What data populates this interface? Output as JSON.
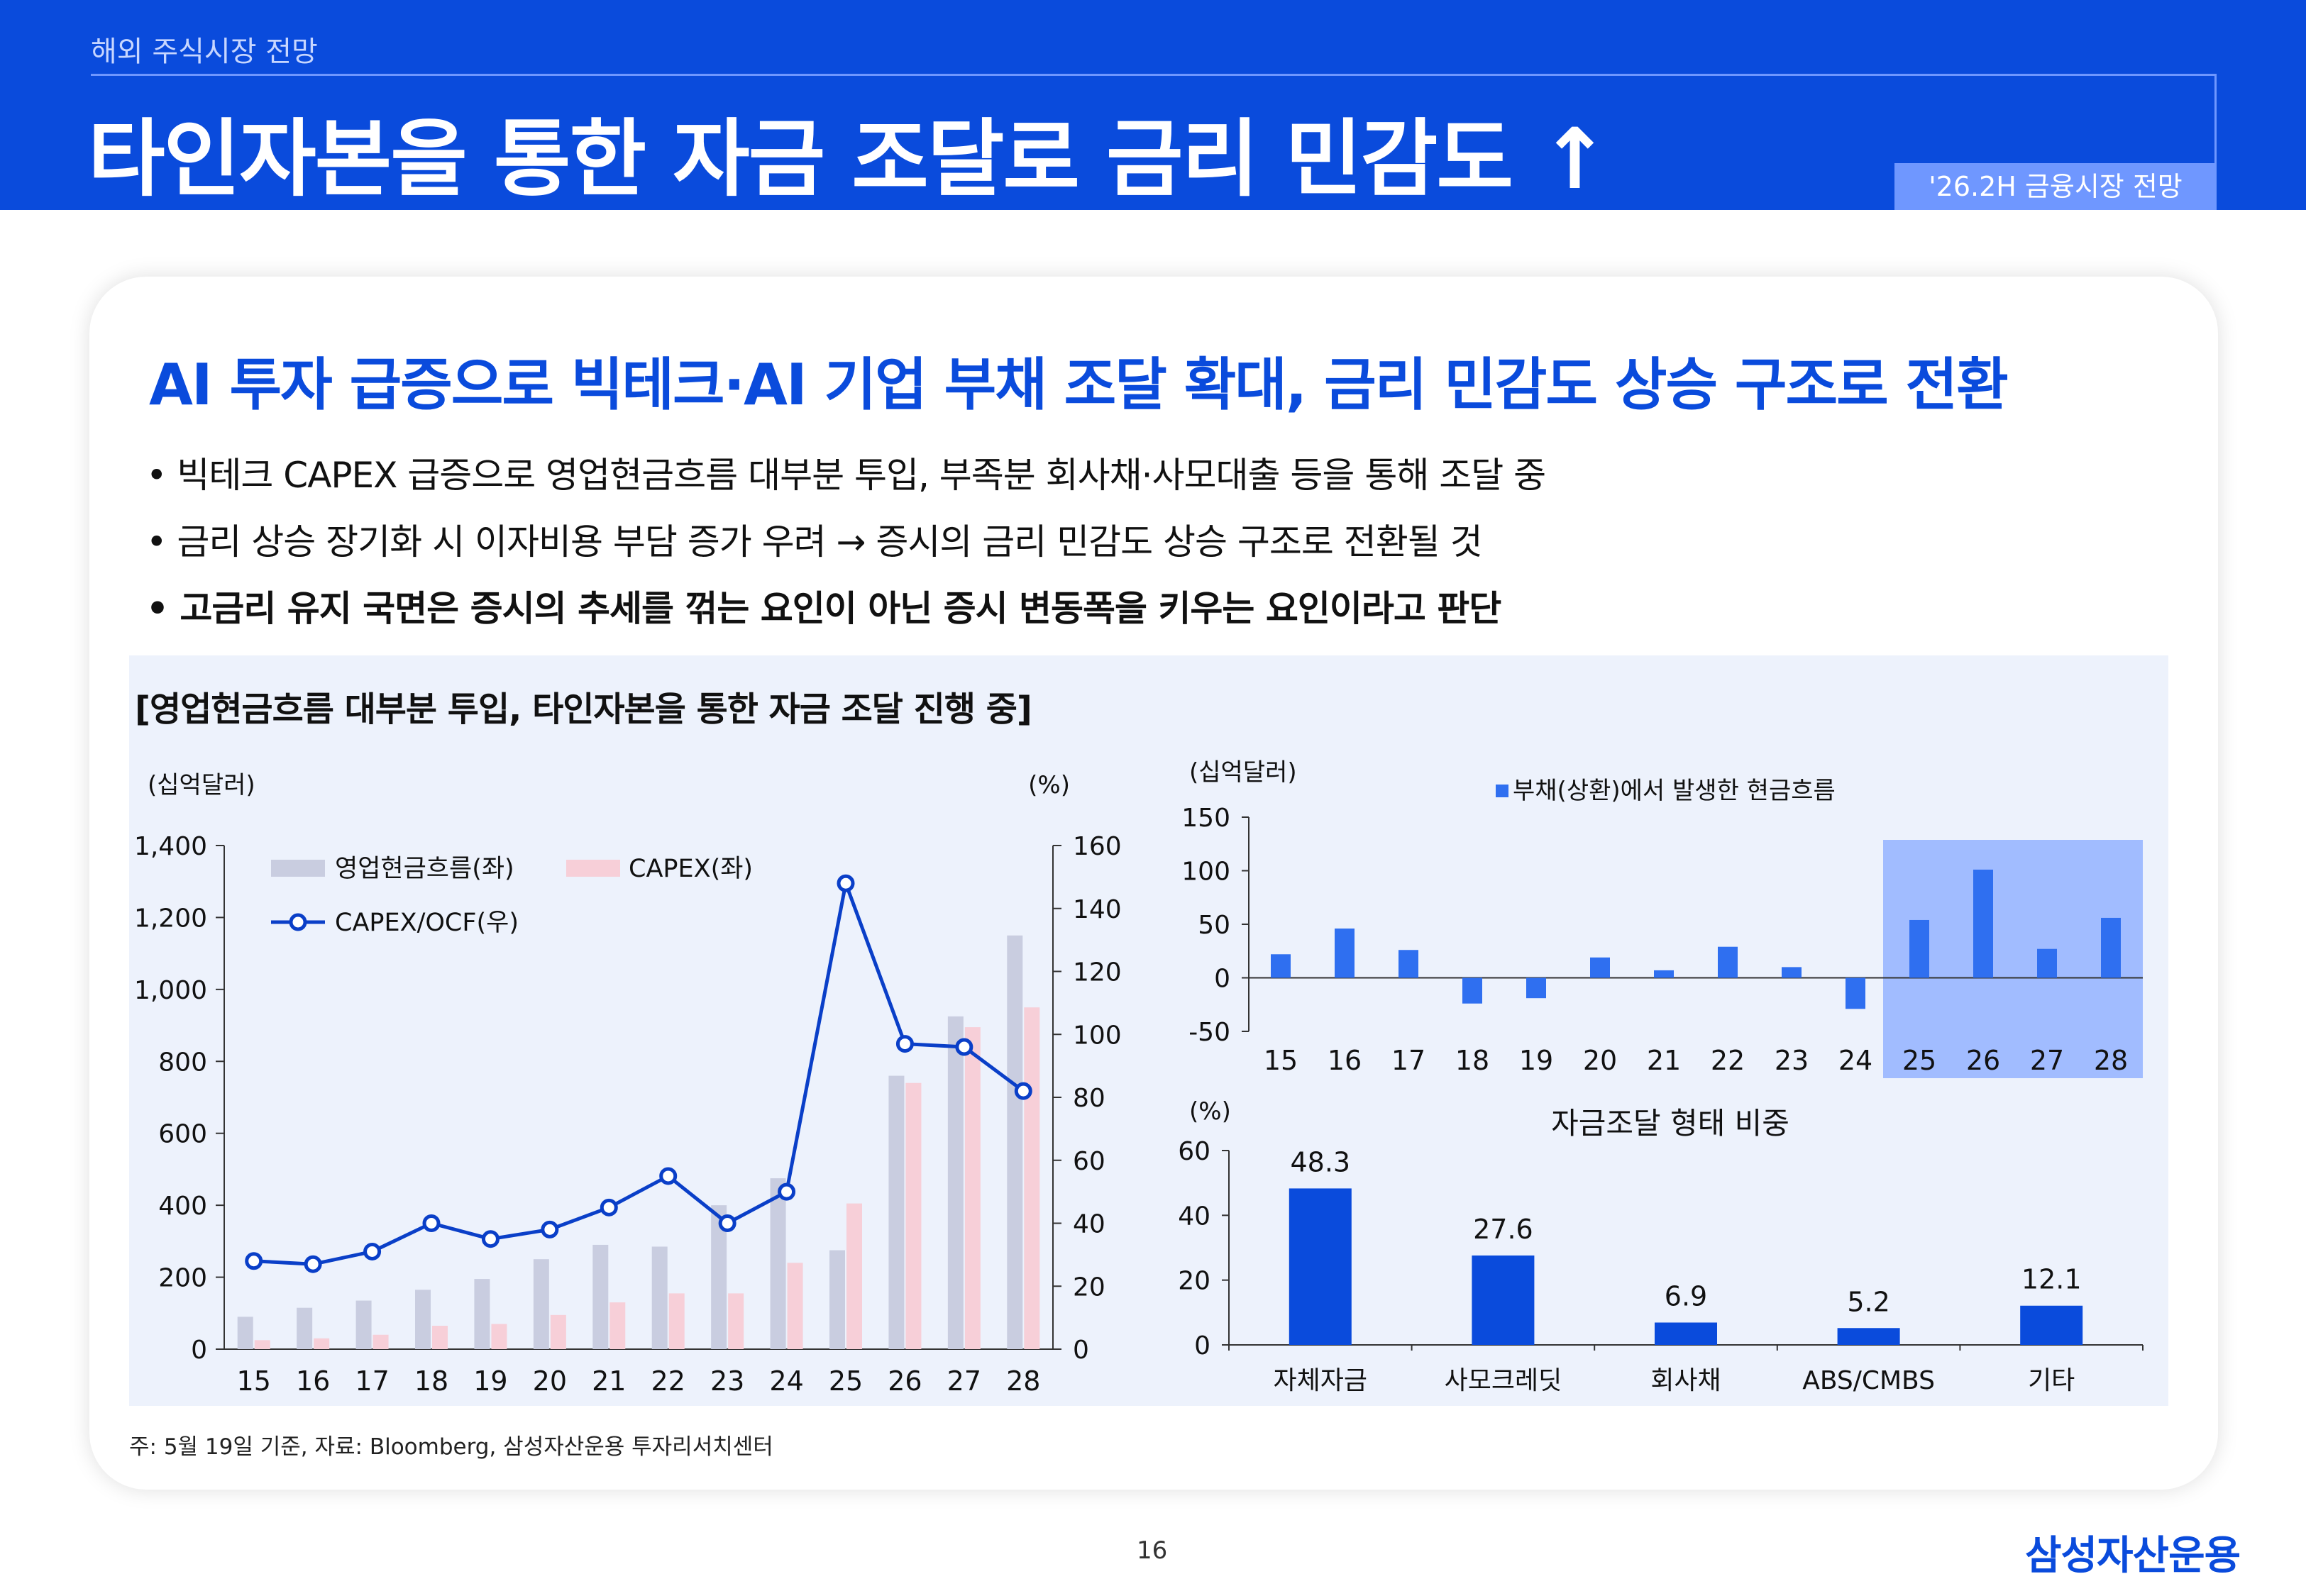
{
  "header": {
    "section": "해외 주식시장 전망",
    "title": "타인자본을 통한 자금 조달로 금리 민감도 ↑",
    "tag": "'26.2H 금융시장 전망"
  },
  "headline": "AI 투자 급증으로 빅테크·AI 기업 부채 조달 확대, 금리 민감도 상승 구조로 전환",
  "bullets": [
    "• 빅테크 CAPEX 급증으로 영업현금흐름 대부분 투입, 부족분 회사채·사모대출 등을 통해 조달 중",
    "• 금리 상승 장기화 시 이자비용 부담 증가 우려 → 증시의 금리 민감도 상승 구조로 전환될 것",
    "• 고금리 유지 국면은 증시의 추세를 꺾는 요인이 아닌 증시 변동폭을 키우는 요인이라고 판단"
  ],
  "panel_title": "[영업현금흐름 대부분 투입, 타인자본을 통한 자금 조달 진행 중]",
  "note": "주: 5월 19일 기준, 자료: Bloomberg, 삼성자산운용 투자리서치센터",
  "page_number": "16",
  "logo": "삼성자산운용",
  "colors": {
    "brand_blue": "#0a4bdc",
    "ocf_bar": "#c9cde0",
    "capex_bar": "#f7cfd8",
    "ratio_line": "#0a3fc8",
    "highlight": "#9db8ff",
    "small_bar": "#2f6ff0"
  },
  "chart_data": [
    {
      "type": "bar",
      "y_unit_left": "(십억달러)",
      "y_unit_right": "(%)",
      "categories": [
        "15",
        "16",
        "17",
        "18",
        "19",
        "20",
        "21",
        "22",
        "23",
        "24",
        "25",
        "26",
        "27",
        "28"
      ],
      "ylim_left": [
        0,
        1400
      ],
      "yticks_left": [
        "0",
        "200",
        "400",
        "600",
        "800",
        "1,000",
        "1,200",
        "1,400"
      ],
      "ylim_right": [
        0,
        160
      ],
      "yticks_right": [
        "0",
        "20",
        "40",
        "60",
        "80",
        "100",
        "120",
        "140",
        "160"
      ],
      "series": [
        {
          "name": "영업현금흐름(좌)",
          "type": "bar",
          "axis": "left",
          "values": [
            90,
            115,
            135,
            165,
            195,
            250,
            290,
            285,
            400,
            475,
            275,
            760,
            925,
            1150
          ]
        },
        {
          "name": "CAPEX(좌)",
          "type": "bar",
          "axis": "left",
          "values": [
            25,
            30,
            40,
            65,
            70,
            95,
            130,
            155,
            155,
            240,
            405,
            740,
            895,
            950
          ]
        },
        {
          "name": "CAPEX/OCF(우)",
          "type": "line",
          "axis": "right",
          "values": [
            28,
            27,
            31,
            40,
            35,
            38,
            45,
            55,
            40,
            50,
            148,
            97,
            96,
            82
          ]
        }
      ],
      "legend": "top-left"
    },
    {
      "type": "bar",
      "y_unit": "(십억달러)",
      "categories": [
        "15",
        "16",
        "17",
        "18",
        "19",
        "20",
        "21",
        "22",
        "23",
        "24",
        "25",
        "26",
        "27",
        "28"
      ],
      "ylim": [
        -50,
        150
      ],
      "yticks": [
        "-50",
        "0",
        "50",
        "100",
        "150"
      ],
      "highlight_categories": [
        "25",
        "26",
        "27",
        "28"
      ],
      "series": [
        {
          "name": "부채(상환)에서 발생한 현금흐름",
          "values": [
            22,
            46,
            26,
            -24,
            -19,
            19,
            7,
            29,
            10,
            -29,
            54,
            101,
            27,
            56
          ]
        }
      ],
      "legend": "top-center"
    },
    {
      "type": "bar",
      "title": "자금조달 형태 비중",
      "y_unit": "(%)",
      "categories": [
        "자체자금",
        "사모크레딧",
        "회사채",
        "ABS/CMBS",
        "기타"
      ],
      "ylim": [
        0,
        60
      ],
      "yticks": [
        "0",
        "20",
        "40",
        "60"
      ],
      "values": [
        48.3,
        27.6,
        6.9,
        5.2,
        12.1
      ],
      "value_labels": [
        "48.3",
        "27.6",
        "6.9",
        "5.2",
        "12.1"
      ]
    }
  ]
}
